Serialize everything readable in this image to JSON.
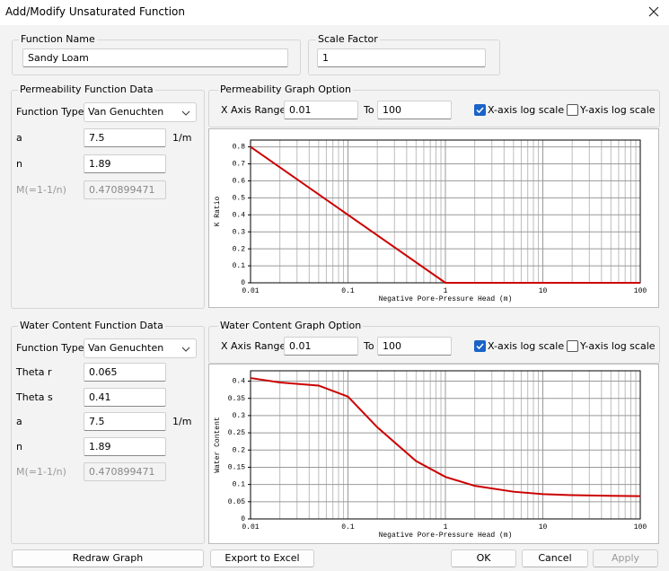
{
  "dialog": {
    "title": "Add/Modify Unsaturated Function"
  },
  "function_name": {
    "label": "Function Name",
    "value": "Sandy Loam"
  },
  "scale_factor": {
    "label": "Scale Factor",
    "value": "1"
  },
  "permeability": {
    "title": "Permeability Function Data",
    "function_type": {
      "label": "Function Type",
      "value": "Van Genuchten"
    },
    "fields": [
      {
        "label": "a",
        "value": "7.5",
        "unit": "1/m"
      },
      {
        "label": "n",
        "value": "1.89"
      },
      {
        "label": "M(=1-1/n)",
        "value": "0.470899471",
        "disabled": true
      }
    ]
  },
  "permeability_graph": {
    "title": "Permeability Graph Option",
    "x_range_label": "X Axis Range",
    "x_min": "0.01",
    "to_label": "To",
    "x_max": "100",
    "x_log": {
      "label": "X-axis log scale",
      "checked": true
    },
    "y_log": {
      "label": "Y-axis log scale",
      "checked": false
    }
  },
  "water_content": {
    "title": "Water Content Function Data",
    "function_type": {
      "label": "Function Type",
      "value": "Van Genuchten"
    },
    "fields": [
      {
        "label": "Theta r",
        "value": "0.065"
      },
      {
        "label": "Theta s",
        "value": "0.41"
      },
      {
        "label": "a",
        "value": "7.5",
        "unit": "1/m"
      },
      {
        "label": "n",
        "value": "1.89"
      },
      {
        "label": "M(=1-1/n)",
        "value": "0.470899471",
        "disabled": true
      }
    ]
  },
  "water_content_graph": {
    "title": "Water Content Graph Option",
    "x_range_label": "X Axis Range",
    "x_min": "0.01",
    "to_label": "To",
    "x_max": "100",
    "x_log": {
      "label": "X-axis log scale",
      "checked": true
    },
    "y_log": {
      "label": "Y-axis log scale",
      "checked": false
    }
  },
  "chart_data": [
    {
      "type": "line",
      "xlabel": "Negative Pore-Pressure Head (m)",
      "ylabel": "K Ratio",
      "xscale": "log",
      "grid": true,
      "x": [
        0.01,
        1,
        100
      ],
      "series": [
        {
          "color": "#cc0000",
          "values": [
            0.8,
            0,
            0
          ]
        }
      ],
      "xlim": [
        0.01,
        100
      ],
      "ylim": [
        0,
        0.84
      ],
      "xticks": [
        0.01,
        0.1,
        1,
        10,
        100
      ],
      "yticks": [
        0,
        0.1,
        0.2,
        0.3,
        0.4,
        0.5,
        0.6,
        0.7,
        0.8
      ]
    },
    {
      "type": "line",
      "xlabel": "Negative Pore-Pressure Head (m)",
      "ylabel": "Water Content",
      "xscale": "log",
      "grid": true,
      "x": [
        0.01,
        0.02,
        0.05,
        0.1,
        0.2,
        0.5,
        1,
        2,
        5,
        10,
        20,
        50,
        100
      ],
      "series": [
        {
          "color": "#cc0000",
          "values": [
            0.409,
            0.396,
            0.387,
            0.355,
            0.266,
            0.168,
            0.122,
            0.096,
            0.079,
            0.072,
            0.069,
            0.067,
            0.066
          ]
        }
      ],
      "xlim": [
        0.01,
        100
      ],
      "ylim": [
        0,
        0.43
      ],
      "xticks": [
        0.01,
        0.1,
        1,
        10,
        100
      ],
      "yticks": [
        0,
        0.05,
        0.1,
        0.15,
        0.2,
        0.25,
        0.3,
        0.35,
        0.4
      ]
    }
  ],
  "buttons": [
    {
      "label": "Redraw Graph"
    },
    {
      "label": "Export to Excel"
    },
    {
      "label": "OK"
    },
    {
      "label": "Cancel"
    },
    {
      "label": "Apply",
      "disabled": true
    }
  ]
}
